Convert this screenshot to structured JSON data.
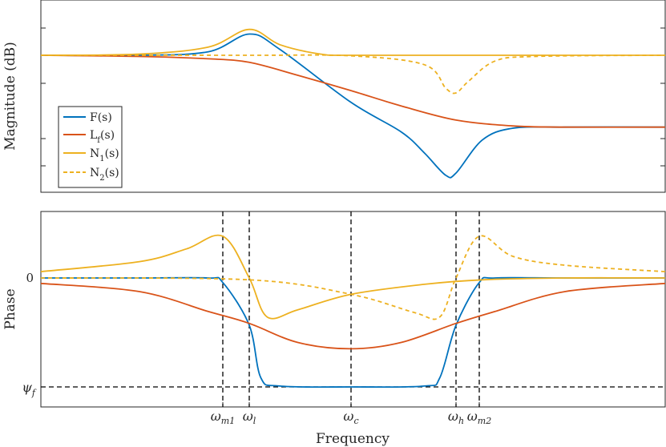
{
  "chart_data": [
    {
      "type": "line",
      "panel": "magnitude",
      "ylabel": "Magnitude (dB)",
      "xlabel": "",
      "x_scale": "log",
      "grid": false,
      "legend_position": "middle-left",
      "legend": [
        {
          "label": "F(s)",
          "style": "solid",
          "color": "#0072BD"
        },
        {
          "label": "Lf(s)",
          "style": "solid",
          "color": "#D95319"
        },
        {
          "label": "N1(s)",
          "style": "solid",
          "color": "#EDB120"
        },
        {
          "label": "N2(s)",
          "style": "dashed",
          "color": "#EDB120"
        }
      ],
      "series": [
        {
          "name": "F(s)",
          "x": [
            0.001,
            0.01,
            0.05,
            0.1,
            0.2,
            1,
            3,
            5,
            8,
            10,
            15,
            30,
            100,
            1000
          ],
          "values": [
            0,
            0,
            0.3,
            1.8,
            0.5,
            -4,
            -6.5,
            -8.3,
            -10.2,
            -10,
            -7.2,
            -6.2,
            -6.1,
            -6.1
          ]
        },
        {
          "name": "Lf(s)",
          "x": [
            0.001,
            0.01,
            0.05,
            0.1,
            0.3,
            1,
            3,
            10,
            30,
            100,
            1000
          ],
          "values": [
            0,
            -0.1,
            -0.3,
            -0.6,
            -1.7,
            -3.0,
            -4.3,
            -5.5,
            -6.0,
            -6.1,
            -6.1
          ]
        },
        {
          "name": "N1(s)",
          "x": [
            0.001,
            0.01,
            0.05,
            0.1,
            0.2,
            0.5,
            1,
            10,
            1000
          ],
          "values": [
            0,
            0.1,
            0.7,
            2.2,
            0.9,
            0.1,
            0,
            0,
            0
          ]
        },
        {
          "name": "N2(s)",
          "x": [
            0.001,
            0.1,
            1,
            5,
            8,
            10,
            12,
            20,
            50,
            1000
          ],
          "values": [
            0,
            0,
            -0.05,
            -0.8,
            -2.8,
            -3.2,
            -2.2,
            -0.5,
            -0.1,
            0
          ]
        }
      ]
    },
    {
      "type": "line",
      "panel": "phase",
      "ylabel": "Phase",
      "xlabel": "Frequency",
      "x_scale": "log",
      "grid": false,
      "y_tick_labels": [
        "0",
        "ψf"
      ],
      "x_tick_labels": [
        "ωm1",
        "ωl",
        "ωc",
        "ωh",
        "ωm2"
      ],
      "x_ticks": [
        0.07,
        0.1,
        1,
        10,
        14
      ],
      "reference_lines": [
        {
          "type": "vertical",
          "x": 0.07,
          "label": "ωm1"
        },
        {
          "type": "vertical",
          "x": 0.1,
          "label": "ωl"
        },
        {
          "type": "vertical",
          "x": 1,
          "label": "ωc"
        },
        {
          "type": "vertical",
          "x": 10,
          "label": "ωh"
        },
        {
          "type": "vertical",
          "x": 14,
          "label": "ωm2"
        },
        {
          "type": "horizontal",
          "y": -120,
          "label": "ψf"
        }
      ],
      "series": [
        {
          "name": "F(s)",
          "x": [
            0.001,
            0.01,
            0.05,
            0.07,
            0.1,
            0.13,
            0.2,
            1,
            5,
            7,
            10,
            14,
            20,
            100,
            1000
          ],
          "values": [
            0,
            0,
            0,
            -5,
            -52,
            -110,
            -119,
            -120,
            -119,
            -110,
            -52,
            -5,
            0,
            0,
            0
          ]
        },
        {
          "name": "Lf(s)",
          "x": [
            0.001,
            0.01,
            0.05,
            0.1,
            0.3,
            1,
            3,
            10,
            20,
            100,
            1000
          ],
          "values": [
            -6,
            -15,
            -37,
            -50,
            -71,
            -78,
            -71,
            -50,
            -37,
            -15,
            -6
          ]
        },
        {
          "name": "N1(s)",
          "x": [
            0.001,
            0.01,
            0.03,
            0.07,
            0.1,
            0.15,
            0.3,
            1,
            5,
            15,
            100,
            1000
          ],
          "values": [
            7,
            18,
            32,
            46,
            0,
            -43,
            -35,
            -18,
            -7,
            -2,
            0,
            0
          ]
        },
        {
          "name": "N2(s)",
          "x": [
            0.001,
            0.1,
            1,
            4,
            7,
            10,
            14,
            30,
            100,
            1000
          ],
          "values": [
            0,
            -2,
            -18,
            -38,
            -43,
            0,
            46,
            24,
            14,
            7
          ]
        }
      ]
    }
  ]
}
